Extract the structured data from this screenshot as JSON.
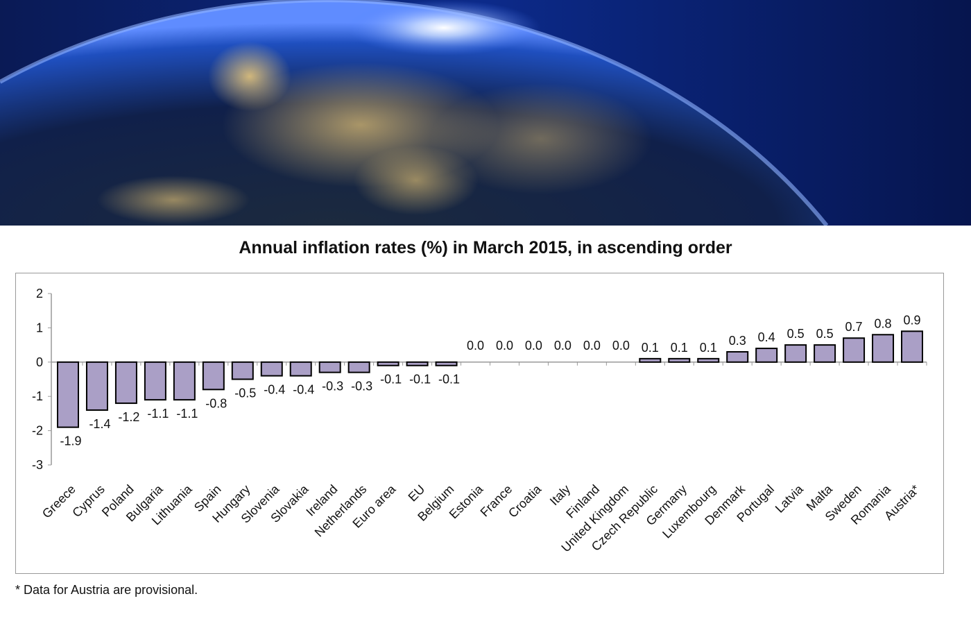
{
  "chart_data": {
    "type": "bar",
    "title": "Annual inflation rates (%) in March 2015, in ascending order",
    "categories": [
      "Greece",
      "Cyprus",
      "Poland",
      "Bulgaria",
      "Lithuania",
      "Spain",
      "Hungary",
      "Slovenia",
      "Slovakia",
      "Ireland",
      "Netherlands",
      "Euro area",
      "EU",
      "Belgium",
      "Estonia",
      "France",
      "Croatia",
      "Italy",
      "Finland",
      "United Kingdom",
      "Czech Republic",
      "Germany",
      "Luxembourg",
      "Denmark",
      "Portugal",
      "Latvia",
      "Malta",
      "Sweden",
      "Romania",
      "Austria*"
    ],
    "values": [
      -1.9,
      -1.4,
      -1.2,
      -1.1,
      -1.1,
      -0.8,
      -0.5,
      -0.4,
      -0.4,
      -0.3,
      -0.3,
      -0.1,
      -0.1,
      -0.1,
      0.0,
      0.0,
      0.0,
      0.0,
      0.0,
      0.0,
      0.1,
      0.1,
      0.1,
      0.3,
      0.4,
      0.5,
      0.5,
      0.7,
      0.8,
      0.9
    ],
    "ylim": [
      -3,
      2
    ],
    "yticks": [
      2,
      1,
      0,
      -1,
      -2,
      -3
    ],
    "xlabel": "",
    "ylabel": "",
    "grid": false,
    "bar_color": "#aa9fc6",
    "bar_edge_color": "#000000",
    "data_labels": true
  },
  "footnote": "* Data for Austria are provisional.",
  "banner": {
    "image": "earth-at-night-europe-from-space"
  }
}
